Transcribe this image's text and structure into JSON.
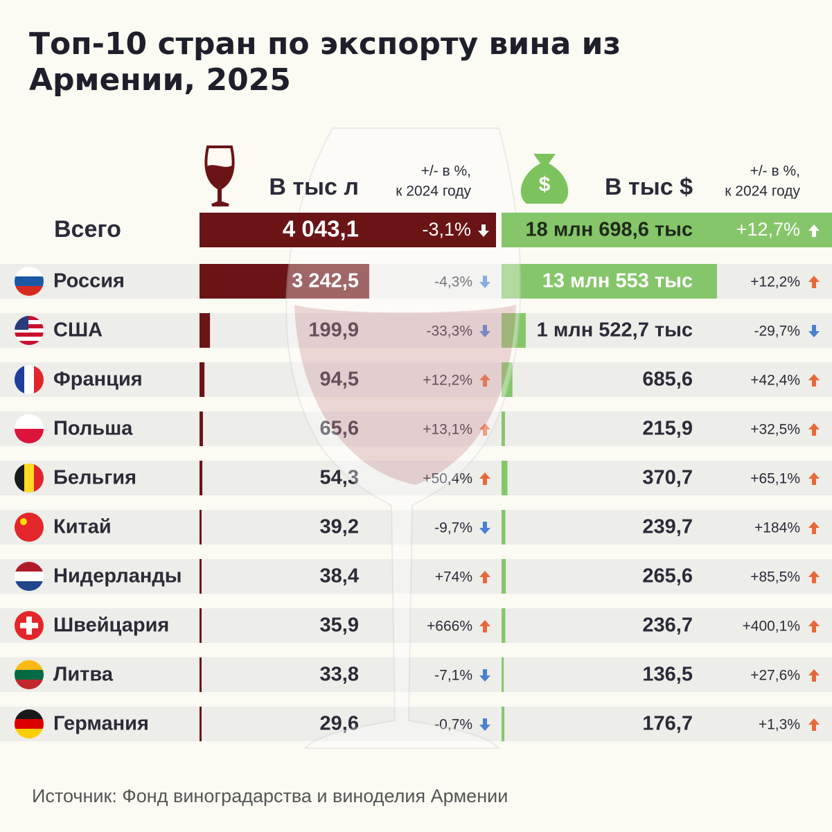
{
  "title": [
    "Топ-10 стран по экспорту вина из",
    "Армении, 2025"
  ],
  "header": {
    "liters": "В тыс л",
    "liters_change": [
      "+/- в %,",
      "к 2024 году"
    ],
    "usd": "В тыс $",
    "usd_change": [
      "+/- в %,",
      "к 2024 году"
    ]
  },
  "total": {
    "label": "Всего",
    "liters": "4 043,1",
    "liters_change": "-3,1%",
    "usd": "18 млн 698,6 тыс",
    "usd_change": "+12,7%"
  },
  "rows": [
    {
      "country": "Россия",
      "liters": {
        "value": 3242.5,
        "label": "3 242,5"
      },
      "liters_change": "-4,3%",
      "usd": {
        "value": 13553,
        "label": "13 млн 553 тыс"
      },
      "usd_change": "+12,2%"
    },
    {
      "country": "США",
      "liters": {
        "value": 199.9,
        "label": "199,9"
      },
      "liters_change": "-33,3%",
      "usd": {
        "value": 1522.7,
        "label": "1 млн 522,7 тыс"
      },
      "usd_change": "-29,7%"
    },
    {
      "country": "Франция",
      "liters": {
        "value": 94.5,
        "label": "94,5"
      },
      "liters_change": "+12,2%",
      "usd": {
        "value": 685.6,
        "label": "685,6"
      },
      "usd_change": "+42,4%"
    },
    {
      "country": "Польша",
      "liters": {
        "value": 65.6,
        "label": "65,6"
      },
      "liters_change": "+13,1%",
      "usd": {
        "value": 215.9,
        "label": "215,9"
      },
      "usd_change": "+32,5%"
    },
    {
      "country": "Бельгия",
      "liters": {
        "value": 54.3,
        "label": "54,3"
      },
      "liters_change": "+50,4%",
      "usd": {
        "value": 370.7,
        "label": "370,7"
      },
      "usd_change": "+65,1%"
    },
    {
      "country": "Китай",
      "liters": {
        "value": 39.2,
        "label": "39,2"
      },
      "liters_change": "-9,7%",
      "usd": {
        "value": 239.7,
        "label": "239,7"
      },
      "usd_change": "+184%"
    },
    {
      "country": "Нидерланды",
      "liters": {
        "value": 38.4,
        "label": "38,4"
      },
      "liters_change": "+74%",
      "usd": {
        "value": 265.6,
        "label": "265,6"
      },
      "usd_change": "+85,5%"
    },
    {
      "country": "Швейцария",
      "liters": {
        "value": 35.9,
        "label": "35,9"
      },
      "liters_change": "+666%",
      "usd": {
        "value": 236.7,
        "label": "236,7"
      },
      "usd_change": "+400,1%"
    },
    {
      "country": "Литва",
      "liters": {
        "value": 33.8,
        "label": "33,8"
      },
      "liters_change": "-7,1%",
      "usd": {
        "value": 136.5,
        "label": "136,5"
      },
      "usd_change": "+27,6%"
    },
    {
      "country": "Германия",
      "liters": {
        "value": 29.6,
        "label": "29,6"
      },
      "liters_change": "-0,7%",
      "usd": {
        "value": 176.7,
        "label": "176,7"
      },
      "usd_change": "+1,3%"
    }
  ],
  "source": "Источник: Фонд виноградарства и виноделия Армении"
}
